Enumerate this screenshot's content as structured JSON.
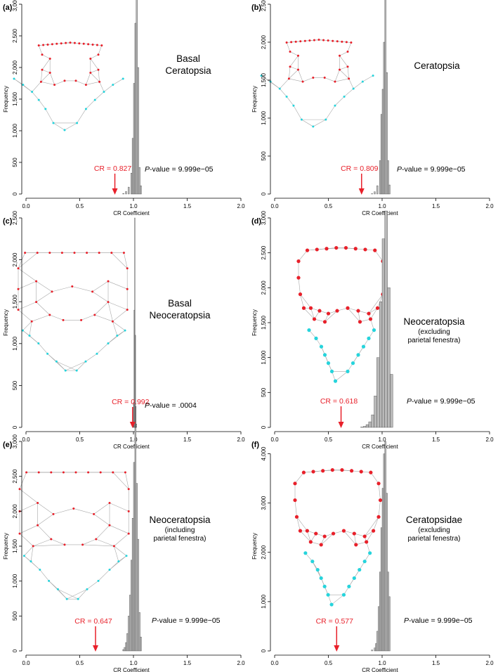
{
  "colors": {
    "cr": "#e8202a",
    "bar": "#b9b9b9",
    "barStroke": "#333333",
    "landmarkA": "#e8202a",
    "landmarkB": "#26d4dc",
    "mesh": "#a8a8a8"
  },
  "chart_data": [
    {
      "type": "bar",
      "panel": "(a)",
      "title": "Basal\nCeratopsia",
      "xlabel": "CR Coefficient",
      "ylabel": "Frequency",
      "xlim": [
        0,
        2
      ],
      "ylim": [
        0,
        3000
      ],
      "xticks": [
        0,
        0.5,
        1,
        1.5,
        2
      ],
      "xtick_labels": [
        "0.0",
        "0.5",
        "1.0",
        "1.5",
        "2.0"
      ],
      "yticks": [
        0,
        500,
        1000,
        1500,
        2000,
        2500,
        3000
      ],
      "ytick_labels": [
        "0",
        "500",
        "1,000",
        "1,500",
        "2,000",
        "2,500",
        "3,000"
      ],
      "bin_width": 0.0125,
      "bins": [
        [
          0.9,
          10
        ],
        [
          0.925,
          40
        ],
        [
          0.95,
          110
        ],
        [
          0.975,
          330
        ],
        [
          0.9875,
          880
        ],
        [
          1.0,
          1750
        ],
        [
          1.0125,
          2700
        ],
        [
          1.025,
          3100
        ],
        [
          1.0375,
          2000
        ],
        [
          1.05,
          420
        ],
        [
          1.0625,
          130
        ]
      ],
      "cr": {
        "label": "CR = 0.827",
        "value": 0.827
      },
      "p_value": {
        "label": "P",
        "rest": "-value = 9.999e−05"
      },
      "landmarks": "ring"
    },
    {
      "type": "bar",
      "panel": "(b)",
      "title": "Ceratopsia",
      "xlabel": "CR Coefficient",
      "ylabel": "Frequency",
      "xlim": [
        0,
        2
      ],
      "ylim": [
        0,
        2500
      ],
      "xticks": [
        0,
        0.5,
        1,
        1.5,
        2
      ],
      "xtick_labels": [
        "0.0",
        "0.5",
        "1.0",
        "1.5",
        "2.0"
      ],
      "yticks": [
        0,
        500,
        1000,
        1500,
        2000,
        2500
      ],
      "ytick_labels": [
        "0",
        "500",
        "1,000",
        "1,500",
        "2,000",
        "2,500"
      ],
      "bin_width": 0.0125,
      "bins": [
        [
          0.9,
          5
        ],
        [
          0.925,
          30
        ],
        [
          0.95,
          110
        ],
        [
          0.975,
          440
        ],
        [
          0.9875,
          1050
        ],
        [
          1.0,
          1380
        ],
        [
          1.0125,
          2000
        ],
        [
          1.025,
          2570
        ],
        [
          1.0375,
          1600
        ],
        [
          1.05,
          440
        ],
        [
          1.0625,
          120
        ]
      ],
      "cr": {
        "label": "CR = 0.809",
        "value": 0.809
      },
      "p_value": {
        "label": "P",
        "rest": "-value = 9.999e−05"
      },
      "landmarks": "ring"
    },
    {
      "type": "bar",
      "panel": "(c)",
      "title": "Basal\nNeoceratopsia",
      "xlabel": "CR Coefficient",
      "ylabel": "Frequency",
      "xlim": [
        0,
        2
      ],
      "ylim": [
        0,
        2500
      ],
      "xticks": [
        0,
        0.5,
        1,
        1.5,
        2
      ],
      "xtick_labels": [
        "0.0",
        "0.5",
        "1.0",
        "1.5",
        "2.0"
      ],
      "yticks": [
        0,
        500,
        1000,
        1500,
        2000,
        2500
      ],
      "ytick_labels": [
        "0",
        "500",
        "1,000",
        "1,500",
        "2,000",
        "2,500"
      ],
      "bin_width": 0.005,
      "bins": [
        [
          0.995,
          20
        ],
        [
          1.0,
          300
        ],
        [
          1.005,
          1400
        ],
        [
          1.01,
          2500
        ],
        [
          1.015,
          1100
        ],
        [
          1.02,
          250
        ],
        [
          1.025,
          40
        ]
      ],
      "cr": {
        "label": "CR = 0.992",
        "value": 0.992
      },
      "p_value": {
        "label": "P",
        "rest": "-value = .0004"
      },
      "landmarks": "grid"
    },
    {
      "type": "bar",
      "panel": "(d)",
      "title": "Neoceratopsia",
      "subtitle": "(excluding\nparietal fenestra)",
      "xlabel": "CR Coefficient",
      "ylabel": "Frequency",
      "xlim": [
        0,
        2
      ],
      "ylim": [
        0,
        3000
      ],
      "xticks": [
        0,
        0.5,
        1,
        1.5,
        2
      ],
      "xtick_labels": [
        "0.0",
        "0.5",
        "1.0",
        "1.5",
        "2.0"
      ],
      "yticks": [
        0,
        500,
        1000,
        1500,
        2000,
        2500,
        3000
      ],
      "ytick_labels": [
        "0",
        "500",
        "1,000",
        "1,500",
        "2,000",
        "2,500",
        "3,000"
      ],
      "bin_width": 0.025,
      "bins": [
        [
          0.8,
          5
        ],
        [
          0.825,
          15
        ],
        [
          0.85,
          40
        ],
        [
          0.875,
          80
        ],
        [
          0.9,
          180
        ],
        [
          0.925,
          450
        ],
        [
          0.95,
          1000
        ],
        [
          0.975,
          1800
        ],
        [
          1.0,
          2700
        ],
        [
          1.025,
          3100
        ],
        [
          1.05,
          2000
        ],
        [
          1.075,
          760
        ]
      ],
      "cr": {
        "label": "CR = 0.618",
        "value": 0.618
      },
      "p_value": {
        "label": "P",
        "rest": "-value = 9.999e−05"
      },
      "landmarks": "numbered"
    },
    {
      "type": "bar",
      "panel": "(e)",
      "title": "Neoceratopsia",
      "subtitle": "(including\nparietal fenestra)",
      "xlabel": "CR Coefficient",
      "ylabel": "Frequency",
      "xlim": [
        0,
        2
      ],
      "ylim": [
        0,
        3000
      ],
      "xticks": [
        0,
        0.5,
        1,
        1.5,
        2
      ],
      "xtick_labels": [
        "0.0",
        "0.5",
        "1.0",
        "1.5",
        "2.0"
      ],
      "yticks": [
        0,
        500,
        1000,
        1500,
        2000,
        2500,
        3000
      ],
      "ytick_labels": [
        "0",
        "500",
        "1,000",
        "1,500",
        "2,000",
        "2,500",
        "3,000"
      ],
      "bin_width": 0.0125,
      "bins": [
        [
          0.9,
          20
        ],
        [
          0.9125,
          50
        ],
        [
          0.925,
          120
        ],
        [
          0.9375,
          250
        ],
        [
          0.95,
          500
        ],
        [
          0.9625,
          800
        ],
        [
          0.975,
          1300
        ],
        [
          0.9875,
          1900
        ],
        [
          1.0,
          2700
        ],
        [
          1.0125,
          3200
        ],
        [
          1.025,
          2400
        ],
        [
          1.0375,
          1600
        ],
        [
          1.05,
          550
        ],
        [
          1.0625,
          200
        ]
      ],
      "cr": {
        "label": "CR = 0.647",
        "value": 0.647
      },
      "p_value": {
        "label": "P",
        "rest": "-value = 9.999e−05"
      },
      "landmarks": "grid"
    },
    {
      "type": "bar",
      "panel": "(f)",
      "title": "Ceratopsidae",
      "subtitle": "(excluding\nparietal fenestra)",
      "xlabel": "CR Coefficient",
      "ylabel": "Frequency",
      "xlim": [
        0,
        2
      ],
      "ylim": [
        0,
        4250
      ],
      "xticks": [
        0,
        0.5,
        1,
        1.5,
        2
      ],
      "xtick_labels": [
        "0.0",
        "0.5",
        "1.0",
        "1.5",
        "2.0"
      ],
      "yticks": [
        0,
        1000,
        2000,
        3000,
        4000
      ],
      "ytick_labels": [
        "0",
        "1,000",
        "2,000",
        "3,000",
        "4,000"
      ],
      "bin_width": 0.0125,
      "bins": [
        [
          0.9,
          20
        ],
        [
          0.925,
          60
        ],
        [
          0.9375,
          150
        ],
        [
          0.95,
          400
        ],
        [
          0.9625,
          900
        ],
        [
          0.975,
          1600
        ],
        [
          0.9875,
          2500
        ],
        [
          1.0,
          3300
        ],
        [
          1.0125,
          4000
        ],
        [
          1.025,
          4250
        ],
        [
          1.0375,
          3200
        ],
        [
          1.05,
          1600
        ],
        [
          1.0625,
          1100
        ]
      ],
      "cr": {
        "label": "CR = 0.577",
        "value": 0.577
      },
      "p_value": {
        "label": "P",
        "rest": "-value = 9.999e−05"
      },
      "landmarks": "numbered"
    }
  ]
}
